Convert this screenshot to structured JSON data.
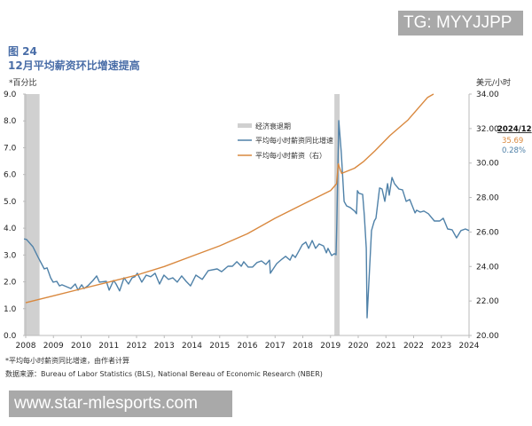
{
  "watermark_top": "TG: MYYJJPP",
  "watermark_bottom": "www.star-mlesports.com",
  "figure_label": "图 24",
  "note": "*平均每小时薪资同比增速，由作者计算",
  "source": "数据来源：Bureau of Labor Statistics (BLS), National Bereau of Economic Research (NBER)",
  "chart_data": {
    "type": "line",
    "title": "12月平均薪资环比增速提高",
    "ylabel_left": "*百分比",
    "ylabel_right": "美元/小时",
    "xlim": [
      2008,
      2024
    ],
    "ylim_left": [
      0,
      9
    ],
    "ylim_right": [
      20,
      34
    ],
    "x_ticks": [
      "2008",
      "2009",
      "2010",
      "2011",
      "2012",
      "2013",
      "2014",
      "2015",
      "2016",
      "2017",
      "2018",
      "2019",
      "2020",
      "2021",
      "2022",
      "2023",
      "2024"
    ],
    "y_ticks_left": [
      "0.0",
      "1.0",
      "2.0",
      "3.0",
      "4.0",
      "5.0",
      "6.0",
      "7.0",
      "8.0",
      "9.0"
    ],
    "y_ticks_right": [
      "20.00",
      "22.00",
      "24.00",
      "26.00",
      "28.00",
      "30.00",
      "32.00",
      "34.00"
    ],
    "grid": false,
    "legend_position": "top-center",
    "recessions": {
      "name": "经济衰退期",
      "color": "#d0d0d0",
      "periods": [
        [
          2007.94,
          2008.5
        ],
        [
          2019.14,
          2019.33
        ]
      ]
    },
    "series": [
      {
        "name": "平均每小时薪资同比增速",
        "axis": "left",
        "color": "#4f81a8",
        "points": [
          [
            2007.94,
            3.6
          ],
          [
            2008.03,
            3.58
          ],
          [
            2008.26,
            3.31
          ],
          [
            2008.45,
            2.91
          ],
          [
            2008.67,
            2.48
          ],
          [
            2008.77,
            2.52
          ],
          [
            2008.9,
            2.15
          ],
          [
            2008.99,
            1.99
          ],
          [
            2009.12,
            2.02
          ],
          [
            2009.22,
            1.85
          ],
          [
            2009.31,
            1.89
          ],
          [
            2009.47,
            1.82
          ],
          [
            2009.63,
            1.75
          ],
          [
            2009.79,
            1.92
          ],
          [
            2009.89,
            1.69
          ],
          [
            2010.02,
            1.89
          ],
          [
            2010.11,
            1.75
          ],
          [
            2010.24,
            1.85
          ],
          [
            2010.43,
            2.05
          ],
          [
            2010.56,
            2.22
          ],
          [
            2010.66,
            1.99
          ],
          [
            2010.91,
            2.02
          ],
          [
            2011.01,
            1.69
          ],
          [
            2011.17,
            2.05
          ],
          [
            2011.26,
            1.92
          ],
          [
            2011.39,
            1.66
          ],
          [
            2011.55,
            2.15
          ],
          [
            2011.71,
            1.92
          ],
          [
            2011.84,
            2.15
          ],
          [
            2011.94,
            2.19
          ],
          [
            2012.03,
            2.32
          ],
          [
            2012.19,
            1.99
          ],
          [
            2012.35,
            2.25
          ],
          [
            2012.51,
            2.19
          ],
          [
            2012.67,
            2.32
          ],
          [
            2012.83,
            1.92
          ],
          [
            2012.99,
            2.25
          ],
          [
            2013.15,
            2.09
          ],
          [
            2013.31,
            2.15
          ],
          [
            2013.47,
            1.99
          ],
          [
            2013.63,
            2.22
          ],
          [
            2013.79,
            2.02
          ],
          [
            2013.95,
            1.85
          ],
          [
            2014.14,
            2.25
          ],
          [
            2014.37,
            2.09
          ],
          [
            2014.59,
            2.42
          ],
          [
            2014.91,
            2.48
          ],
          [
            2015.07,
            2.38
          ],
          [
            2015.3,
            2.58
          ],
          [
            2015.46,
            2.58
          ],
          [
            2015.62,
            2.75
          ],
          [
            2015.78,
            2.58
          ],
          [
            2015.87,
            2.75
          ],
          [
            2016.03,
            2.55
          ],
          [
            2016.19,
            2.55
          ],
          [
            2016.35,
            2.72
          ],
          [
            2016.51,
            2.78
          ],
          [
            2016.67,
            2.65
          ],
          [
            2016.8,
            2.81
          ],
          [
            2016.83,
            2.32
          ],
          [
            2017.06,
            2.68
          ],
          [
            2017.25,
            2.85
          ],
          [
            2017.38,
            2.95
          ],
          [
            2017.54,
            2.81
          ],
          [
            2017.63,
            3.01
          ],
          [
            2017.73,
            2.91
          ],
          [
            2017.86,
            3.15
          ],
          [
            2017.98,
            3.38
          ],
          [
            2018.11,
            3.48
          ],
          [
            2018.21,
            3.25
          ],
          [
            2018.34,
            3.54
          ],
          [
            2018.46,
            3.25
          ],
          [
            2018.59,
            3.41
          ],
          [
            2018.75,
            3.34
          ],
          [
            2018.85,
            3.08
          ],
          [
            2018.91,
            3.25
          ],
          [
            2019.04,
            2.98
          ],
          [
            2019.14,
            3.05
          ],
          [
            2019.2,
            3.01
          ],
          [
            2019.23,
            4.24
          ],
          [
            2019.3,
            8.01
          ],
          [
            2019.39,
            6.82
          ],
          [
            2019.49,
            5.0
          ],
          [
            2019.58,
            4.83
          ],
          [
            2019.71,
            4.77
          ],
          [
            2019.87,
            4.64
          ],
          [
            2019.94,
            4.54
          ],
          [
            2019.97,
            5.4
          ],
          [
            2020.03,
            5.3
          ],
          [
            2020.16,
            5.26
          ],
          [
            2020.22,
            4.47
          ],
          [
            2020.29,
            3.25
          ],
          [
            2020.32,
            0.66
          ],
          [
            2020.48,
            3.91
          ],
          [
            2020.58,
            4.27
          ],
          [
            2020.64,
            4.37
          ],
          [
            2020.77,
            5.5
          ],
          [
            2020.86,
            5.46
          ],
          [
            2020.96,
            5.0
          ],
          [
            2021.06,
            5.66
          ],
          [
            2021.12,
            5.23
          ],
          [
            2021.22,
            5.89
          ],
          [
            2021.31,
            5.66
          ],
          [
            2021.47,
            5.46
          ],
          [
            2021.6,
            5.43
          ],
          [
            2021.73,
            5.0
          ],
          [
            2021.86,
            5.07
          ],
          [
            2022.05,
            4.57
          ],
          [
            2022.11,
            4.67
          ],
          [
            2022.24,
            4.6
          ],
          [
            2022.37,
            4.64
          ],
          [
            2022.53,
            4.54
          ],
          [
            2022.75,
            4.27
          ],
          [
            2022.94,
            4.27
          ],
          [
            2023.07,
            4.37
          ],
          [
            2023.23,
            3.97
          ],
          [
            2023.39,
            3.94
          ],
          [
            2023.55,
            3.64
          ],
          [
            2023.71,
            3.91
          ],
          [
            2023.87,
            3.97
          ],
          [
            2024.0,
            3.91
          ]
        ]
      },
      {
        "name": "平均每小时薪资（右）",
        "axis": "right",
        "color": "#d9883e",
        "points": [
          [
            2008,
            21.9
          ],
          [
            2009,
            22.3
          ],
          [
            2010,
            22.7
          ],
          [
            2011,
            23.1
          ],
          [
            2012,
            23.5
          ],
          [
            2013,
            24.0
          ],
          [
            2014,
            24.6
          ],
          [
            2015,
            25.2
          ],
          [
            2016,
            25.9
          ],
          [
            2017,
            26.8
          ],
          [
            2018,
            27.6
          ],
          [
            2019,
            28.4
          ],
          [
            2019.22,
            28.8
          ],
          [
            2019.28,
            29.95
          ],
          [
            2019.4,
            29.4
          ],
          [
            2019.87,
            29.7
          ],
          [
            2020.2,
            30.1
          ],
          [
            2020.6,
            30.7
          ],
          [
            2021.15,
            31.6
          ],
          [
            2021.8,
            32.5
          ],
          [
            2022.5,
            33.8
          ],
          [
            2022.72,
            34.0
          ]
        ]
      }
    ],
    "annotation": {
      "date": "2024/12",
      "wage": "35.69",
      "mom_growth": "0.28%",
      "wage_color": "#d9883e",
      "growth_color": "#4f81a8"
    }
  }
}
